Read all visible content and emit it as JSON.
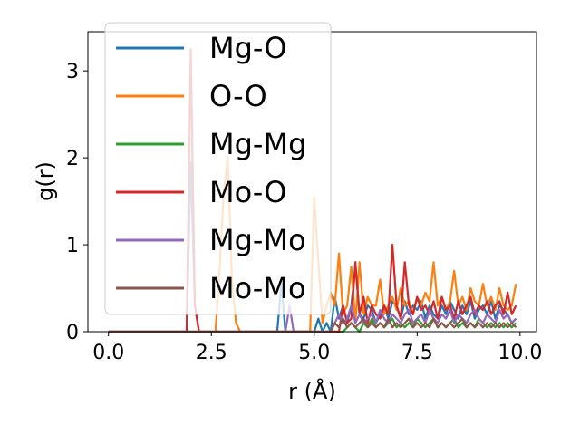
{
  "chart_data": {
    "type": "line",
    "xlabel": "r (Å)",
    "ylabel": "g(r)",
    "xlim": [
      -0.5,
      10.4
    ],
    "ylim": [
      0,
      3.45
    ],
    "xticks": [
      0.0,
      2.5,
      5.0,
      7.5,
      10.0
    ],
    "xtick_labels": [
      "0.0",
      "2.5",
      "5.0",
      "7.5",
      "10.0"
    ],
    "yticks": [
      0,
      1,
      2,
      3
    ],
    "ytick_labels": [
      "0",
      "1",
      "2",
      "3"
    ],
    "grid": false,
    "legend_position": "upper-left",
    "x": [
      0.0,
      0.1,
      0.2,
      0.3,
      0.4,
      0.5,
      0.6,
      0.7,
      0.8,
      0.9,
      1.0,
      1.1,
      1.2,
      1.3,
      1.4,
      1.5,
      1.6,
      1.7,
      1.8,
      1.9,
      2.0,
      2.1,
      2.2,
      2.3,
      2.4,
      2.5,
      2.6,
      2.7,
      2.8,
      2.9,
      3.0,
      3.1,
      3.2,
      3.3,
      3.4,
      3.5,
      3.6,
      3.7,
      3.8,
      3.9,
      4.0,
      4.1,
      4.2,
      4.3,
      4.4,
      4.5,
      4.6,
      4.7,
      4.8,
      4.9,
      5.0,
      5.1,
      5.2,
      5.3,
      5.4,
      5.5,
      5.6,
      5.7,
      5.8,
      5.9,
      6.0,
      6.1,
      6.2,
      6.3,
      6.4,
      6.5,
      6.6,
      6.7,
      6.8,
      6.9,
      7.0,
      7.1,
      7.2,
      7.3,
      7.4,
      7.5,
      7.6,
      7.7,
      7.8,
      7.9,
      8.0,
      8.1,
      8.2,
      8.3,
      8.4,
      8.5,
      8.6,
      8.7,
      8.8,
      8.9,
      9.0,
      9.1,
      9.2,
      9.3,
      9.4,
      9.5,
      9.6,
      9.7,
      9.8,
      9.9
    ],
    "series": [
      {
        "name": "Mg-O",
        "color": "#1f77b4",
        "values": [
          0,
          0,
          0,
          0,
          0,
          0,
          0,
          0,
          0,
          0,
          0,
          0,
          0,
          0,
          0,
          0,
          0,
          0,
          0,
          0,
          1.95,
          0.3,
          0,
          0,
          0,
          0,
          0,
          0,
          0,
          0,
          0,
          0,
          0,
          0,
          0,
          0,
          0,
          0,
          0,
          0,
          0,
          0,
          0.55,
          0,
          0,
          0,
          0,
          0,
          0,
          0,
          0,
          0.15,
          0,
          0.1,
          0,
          0.4,
          0.15,
          0.3,
          0.1,
          0.3,
          0.75,
          0.2,
          0.15,
          0.3,
          0.25,
          0.1,
          0.2,
          0.3,
          0.15,
          0.35,
          0.3,
          0.15,
          0.35,
          0.2,
          0.3,
          0.25,
          0.35,
          0.15,
          0.3,
          0.2,
          0.15,
          0.3,
          0.2,
          0.35,
          0.25,
          0.15,
          0.3,
          0.2,
          0.35,
          0.15,
          0.25,
          0.3,
          0.2,
          0.35,
          0.15,
          0.3,
          0.25,
          0.2,
          0.1,
          0.15
        ]
      },
      {
        "name": "O-O",
        "color": "#ff7f0e",
        "values": [
          0,
          0,
          0,
          0,
          0,
          0,
          0,
          0,
          0,
          0,
          0,
          0,
          0,
          0,
          0,
          0,
          0,
          0,
          0,
          0,
          0,
          0,
          0,
          0,
          0,
          0,
          0,
          0.7,
          1.6,
          2.0,
          0.6,
          0.1,
          0,
          0,
          0,
          0,
          0,
          0,
          0,
          0,
          0,
          0,
          0,
          0,
          0,
          0,
          0,
          0,
          0,
          0,
          1.55,
          0.8,
          0.1,
          0.3,
          0.45,
          0.3,
          0.9,
          0.2,
          0.3,
          0.75,
          0.1,
          0.8,
          0.2,
          0.4,
          0.3,
          0.3,
          0.6,
          0.2,
          0.3,
          0.4,
          0.25,
          0.5,
          0.3,
          0.35,
          0.2,
          0.4,
          0.3,
          0.45,
          0.35,
          0.8,
          0.3,
          0.4,
          0.25,
          0.35,
          0.7,
          0.3,
          0.4,
          0.25,
          0.5,
          0.35,
          0.3,
          0.55,
          0.3,
          0.4,
          0.25,
          0.5,
          0.3,
          0.25,
          0.3,
          0.55
        ]
      },
      {
        "name": "Mg-Mg",
        "color": "#2ca02c",
        "values": [
          0,
          0,
          0,
          0,
          0,
          0,
          0,
          0,
          0,
          0,
          0,
          0,
          0,
          0,
          0,
          0,
          0,
          0,
          0,
          0,
          0,
          0,
          0,
          0,
          0,
          0,
          0,
          0,
          0,
          0,
          0,
          0,
          0,
          0,
          0,
          0,
          0,
          0,
          0,
          0,
          0,
          0,
          0,
          0,
          0,
          0,
          0,
          0,
          0,
          0,
          0,
          0,
          0,
          0,
          0,
          0,
          0,
          0,
          0.05,
          0.1,
          0.05,
          0,
          0.1,
          0.05,
          0.15,
          0.05,
          0.1,
          0.05,
          0.1,
          0.15,
          0.05,
          0.1,
          0.05,
          0.1,
          0.05,
          0.15,
          0.1,
          0.05,
          0.1,
          0.15,
          0.05,
          0.1,
          0.05,
          0.1,
          0.15,
          0.05,
          0.1,
          0.05,
          0.1,
          0.05,
          0.15,
          0.1,
          0.05,
          0.1,
          0.05,
          0.1,
          0.05,
          0.1,
          0.05,
          0.1
        ]
      },
      {
        "name": "Mo-O",
        "color": "#d62728",
        "values": [
          0,
          0,
          0,
          0,
          0,
          0,
          0,
          0,
          0,
          0,
          0,
          0,
          0,
          0,
          0,
          0,
          0,
          0,
          0,
          0,
          3.25,
          0.3,
          0,
          0,
          0,
          0,
          0,
          0,
          0,
          0,
          0,
          0,
          0,
          0,
          0,
          0,
          0,
          0,
          0,
          0,
          0,
          0,
          0,
          0,
          0,
          0,
          0,
          0,
          0,
          0,
          0,
          0,
          0,
          0,
          0,
          0,
          0,
          0.3,
          0.1,
          0.15,
          0.8,
          0.2,
          0.4,
          0.1,
          0.3,
          0.2,
          0.15,
          0.3,
          0.2,
          1.0,
          0.3,
          0.15,
          0.8,
          0.3,
          0.2,
          0.4,
          0.25,
          0.3,
          0.2,
          0.35,
          0.15,
          0.4,
          0.25,
          0.3,
          0.15,
          0.35,
          0.2,
          0.3,
          0.4,
          0.2,
          0.3,
          0.25,
          0.35,
          0.2,
          0.3,
          0.35,
          0.2,
          0.45,
          0.2,
          0.3
        ]
      },
      {
        "name": "Mg-Mo",
        "color": "#9467bd",
        "values": [
          0,
          0,
          0,
          0,
          0,
          0,
          0,
          0,
          0,
          0,
          0,
          0,
          0,
          0,
          0,
          0,
          0,
          0,
          0,
          0,
          0,
          0,
          0,
          0,
          0,
          0,
          0,
          0,
          0,
          0,
          0,
          0,
          0,
          0,
          0,
          0,
          0,
          0,
          0,
          0,
          0,
          0,
          0,
          0,
          0.3,
          0,
          0,
          0,
          0,
          0,
          0,
          0,
          0,
          0,
          0,
          0.1,
          0.2,
          0.1,
          0.15,
          0.3,
          0.1,
          0.2,
          0.1,
          0.15,
          0.2,
          0.1,
          0.25,
          0.15,
          0.1,
          0.2,
          0.15,
          0.1,
          0.2,
          0.25,
          0.1,
          0.15,
          0.2,
          0.1,
          0.25,
          0.15,
          0.1,
          0.2,
          0.15,
          0.25,
          0.1,
          0.2,
          0.15,
          0.1,
          0.2,
          0.25,
          0.15,
          0.1,
          0.2,
          0.15,
          0.1,
          0.25,
          0.15,
          0.2,
          0.1,
          0.15
        ]
      },
      {
        "name": "Mo-Mo",
        "color": "#8c564b",
        "values": [
          0,
          0,
          0,
          0,
          0,
          0,
          0,
          0,
          0,
          0,
          0,
          0,
          0,
          0,
          0,
          0,
          0,
          0,
          0,
          0,
          0,
          0,
          0,
          0,
          0,
          0,
          0,
          0,
          0,
          0,
          0,
          0,
          0,
          0,
          0,
          0,
          0,
          0,
          0,
          0,
          0,
          0,
          0,
          0,
          0,
          0,
          0,
          0,
          0,
          0,
          0,
          0,
          0,
          0,
          0,
          0.1,
          0.05,
          0.15,
          0.05,
          0.1,
          0.05,
          0.1,
          0.15,
          0.05,
          0.1,
          0.05,
          0.1,
          0.05,
          0.15,
          0.05,
          0.1,
          0.05,
          0.1,
          0.15,
          0.05,
          0.1,
          0.05,
          0.1,
          0.05,
          0.15,
          0.05,
          0.1,
          0.05,
          0.1,
          0.05,
          0.1,
          0.15,
          0.05,
          0.1,
          0.05,
          0.1,
          0.05,
          0.1,
          0.05,
          0.1,
          0.05,
          0.1,
          0.05,
          0.1,
          0.05
        ]
      }
    ]
  }
}
